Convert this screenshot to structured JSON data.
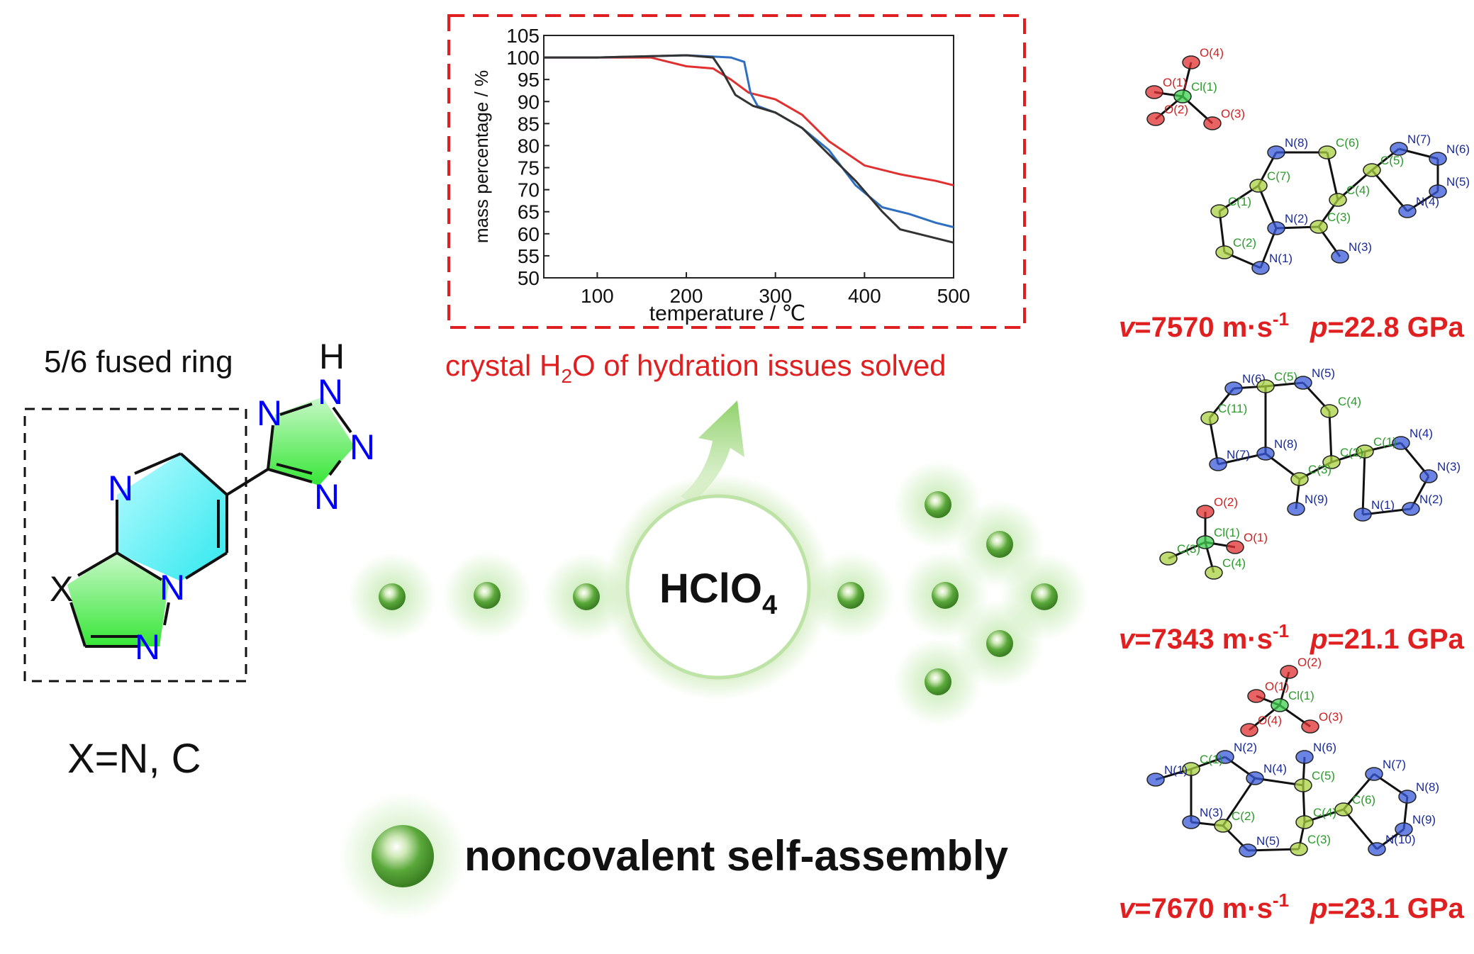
{
  "left_panel": {
    "fused_ring_label": "5/6 fused ring",
    "x_definition": "X=N, C",
    "atoms": {
      "h": "H",
      "n": "N",
      "x": "X"
    }
  },
  "tga_chart": {
    "caption_prefix": "crystal H",
    "caption_subscript": "2",
    "caption_suffix": "O of hydration issues solved"
  },
  "center": {
    "reagent_main": "HClO",
    "reagent_subscript": "4",
    "legend_label": "noncovalent self-assembly"
  },
  "structures": [
    {
      "velocity_symbol": "v",
      "velocity_value": "=7570 m·s",
      "velocity_exp": "-1",
      "pressure_symbol": "p",
      "pressure_value": "=22.8 GPa",
      "labels": [
        "O(4)",
        "O(1)",
        "Cl(1)",
        "O(2)",
        "O(3)",
        "N(8)",
        "C(6)",
        "N(7)",
        "N(6)",
        "C(5)",
        "C(7)",
        "C(4)",
        "C(1)",
        "N(5)",
        "C(3)",
        "N(4)",
        "N(2)",
        "C(2)",
        "N(1)",
        "N(3)"
      ]
    },
    {
      "velocity_symbol": "v",
      "velocity_value": "=7343 m·s",
      "velocity_exp": "-1",
      "pressure_symbol": "p",
      "pressure_value": "=21.1 GPa",
      "labels": [
        "N(6)",
        "C(5)",
        "N(5)",
        "C(4)",
        "C(11)",
        "N(4)",
        "C(1)",
        "N(7)",
        "N(8)",
        "C(2)",
        "C(3)",
        "N(3)",
        "N(9)",
        "N(2)",
        "N(1)",
        "O(2)",
        "Cl(1)",
        "C(3)",
        "O(1)",
        "C(4)"
      ]
    },
    {
      "velocity_symbol": "v",
      "velocity_value": "=7670 m·s",
      "velocity_exp": "-1",
      "pressure_symbol": "p",
      "pressure_value": "=23.1 GPa",
      "labels": [
        "O(2)",
        "O(1)",
        "Cl(1)",
        "O(4)",
        "O(3)",
        "N(2)",
        "C(1)",
        "N(4)",
        "C(5)",
        "N(6)",
        "N(7)",
        "N(1)",
        "C(6)",
        "N(8)",
        "C(4)",
        "N(3)",
        "C(2)",
        "C(3)",
        "N(9)",
        "N(5)",
        "N(10)"
      ]
    }
  ],
  "colors": {
    "accent_red": "#e02020",
    "curve_red": "#e03030",
    "curve_blue": "#2f6fc0",
    "curve_black": "#333333",
    "ring_green": "#37e637",
    "ring_cyan": "#2fe8ee",
    "atom_blue": "#0000ff",
    "sphere_green": "#5aa83a"
  },
  "chart_data": {
    "type": "line",
    "xlabel": "temperature / ℃",
    "ylabel": "mass percentage / %",
    "xlim": [
      40,
      500
    ],
    "ylim": [
      50,
      105
    ],
    "x_ticks": [
      100,
      200,
      300,
      400,
      500
    ],
    "y_ticks": [
      50,
      55,
      60,
      65,
      70,
      75,
      80,
      85,
      90,
      95,
      100,
      105
    ],
    "series": [
      {
        "color": "red",
        "x": [
          40,
          100,
          160,
          180,
          200,
          230,
          250,
          270,
          300,
          330,
          360,
          400,
          440,
          480,
          500
        ],
        "y": [
          100,
          100,
          100,
          99,
          98,
          97.5,
          95,
          92,
          90.5,
          87,
          81,
          75.5,
          73.5,
          72,
          71
        ]
      },
      {
        "color": "blue",
        "x": [
          40,
          100,
          200,
          250,
          265,
          272,
          280,
          300,
          330,
          360,
          390,
          420,
          450,
          480,
          500
        ],
        "y": [
          100,
          100,
          100.5,
          100,
          99,
          92,
          89,
          87.5,
          84,
          79,
          71,
          66,
          64.5,
          62.5,
          61.5
        ]
      },
      {
        "color": "black",
        "x": [
          40,
          100,
          200,
          230,
          240,
          255,
          275,
          300,
          330,
          360,
          390,
          420,
          440,
          470,
          500
        ],
        "y": [
          100,
          100,
          100.5,
          100,
          97,
          91.5,
          89,
          87.5,
          84,
          78,
          72,
          65,
          61,
          59.5,
          58
        ]
      }
    ]
  }
}
